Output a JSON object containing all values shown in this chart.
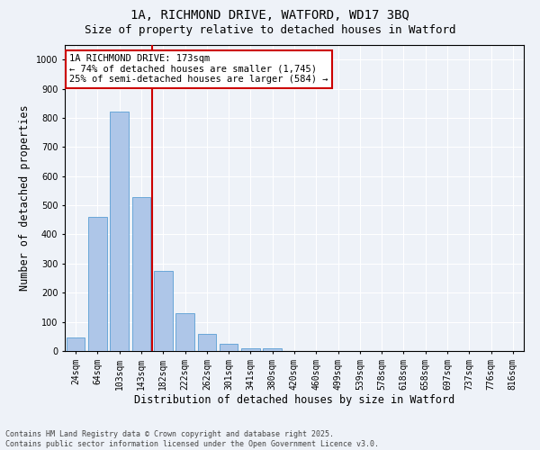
{
  "title_line1": "1A, RICHMOND DRIVE, WATFORD, WD17 3BQ",
  "title_line2": "Size of property relative to detached houses in Watford",
  "xlabel": "Distribution of detached houses by size in Watford",
  "ylabel": "Number of detached properties",
  "categories": [
    "24sqm",
    "64sqm",
    "103sqm",
    "143sqm",
    "182sqm",
    "222sqm",
    "262sqm",
    "301sqm",
    "341sqm",
    "380sqm",
    "420sqm",
    "460sqm",
    "499sqm",
    "539sqm",
    "578sqm",
    "618sqm",
    "658sqm",
    "697sqm",
    "737sqm",
    "776sqm",
    "816sqm"
  ],
  "values": [
    47,
    460,
    820,
    527,
    275,
    130,
    60,
    25,
    10,
    10,
    0,
    0,
    0,
    0,
    0,
    0,
    0,
    0,
    0,
    0,
    0
  ],
  "bar_color": "#aec6e8",
  "bar_edge_color": "#5a9fd4",
  "vline_color": "#cc0000",
  "annotation_text": "1A RICHMOND DRIVE: 173sqm\n← 74% of detached houses are smaller (1,745)\n25% of semi-detached houses are larger (584) →",
  "annotation_box_facecolor": "#ffffff",
  "annotation_box_edgecolor": "#cc0000",
  "ylim": [
    0,
    1050
  ],
  "yticks": [
    0,
    100,
    200,
    300,
    400,
    500,
    600,
    700,
    800,
    900,
    1000
  ],
  "background_color": "#eef2f8",
  "grid_color": "#ffffff",
  "footnote": "Contains HM Land Registry data © Crown copyright and database right 2025.\nContains public sector information licensed under the Open Government Licence v3.0.",
  "title_fontsize": 10,
  "subtitle_fontsize": 9,
  "tick_fontsize": 7,
  "xlabel_fontsize": 8.5,
  "ylabel_fontsize": 8.5,
  "annotation_fontsize": 7.5,
  "footnote_fontsize": 6
}
